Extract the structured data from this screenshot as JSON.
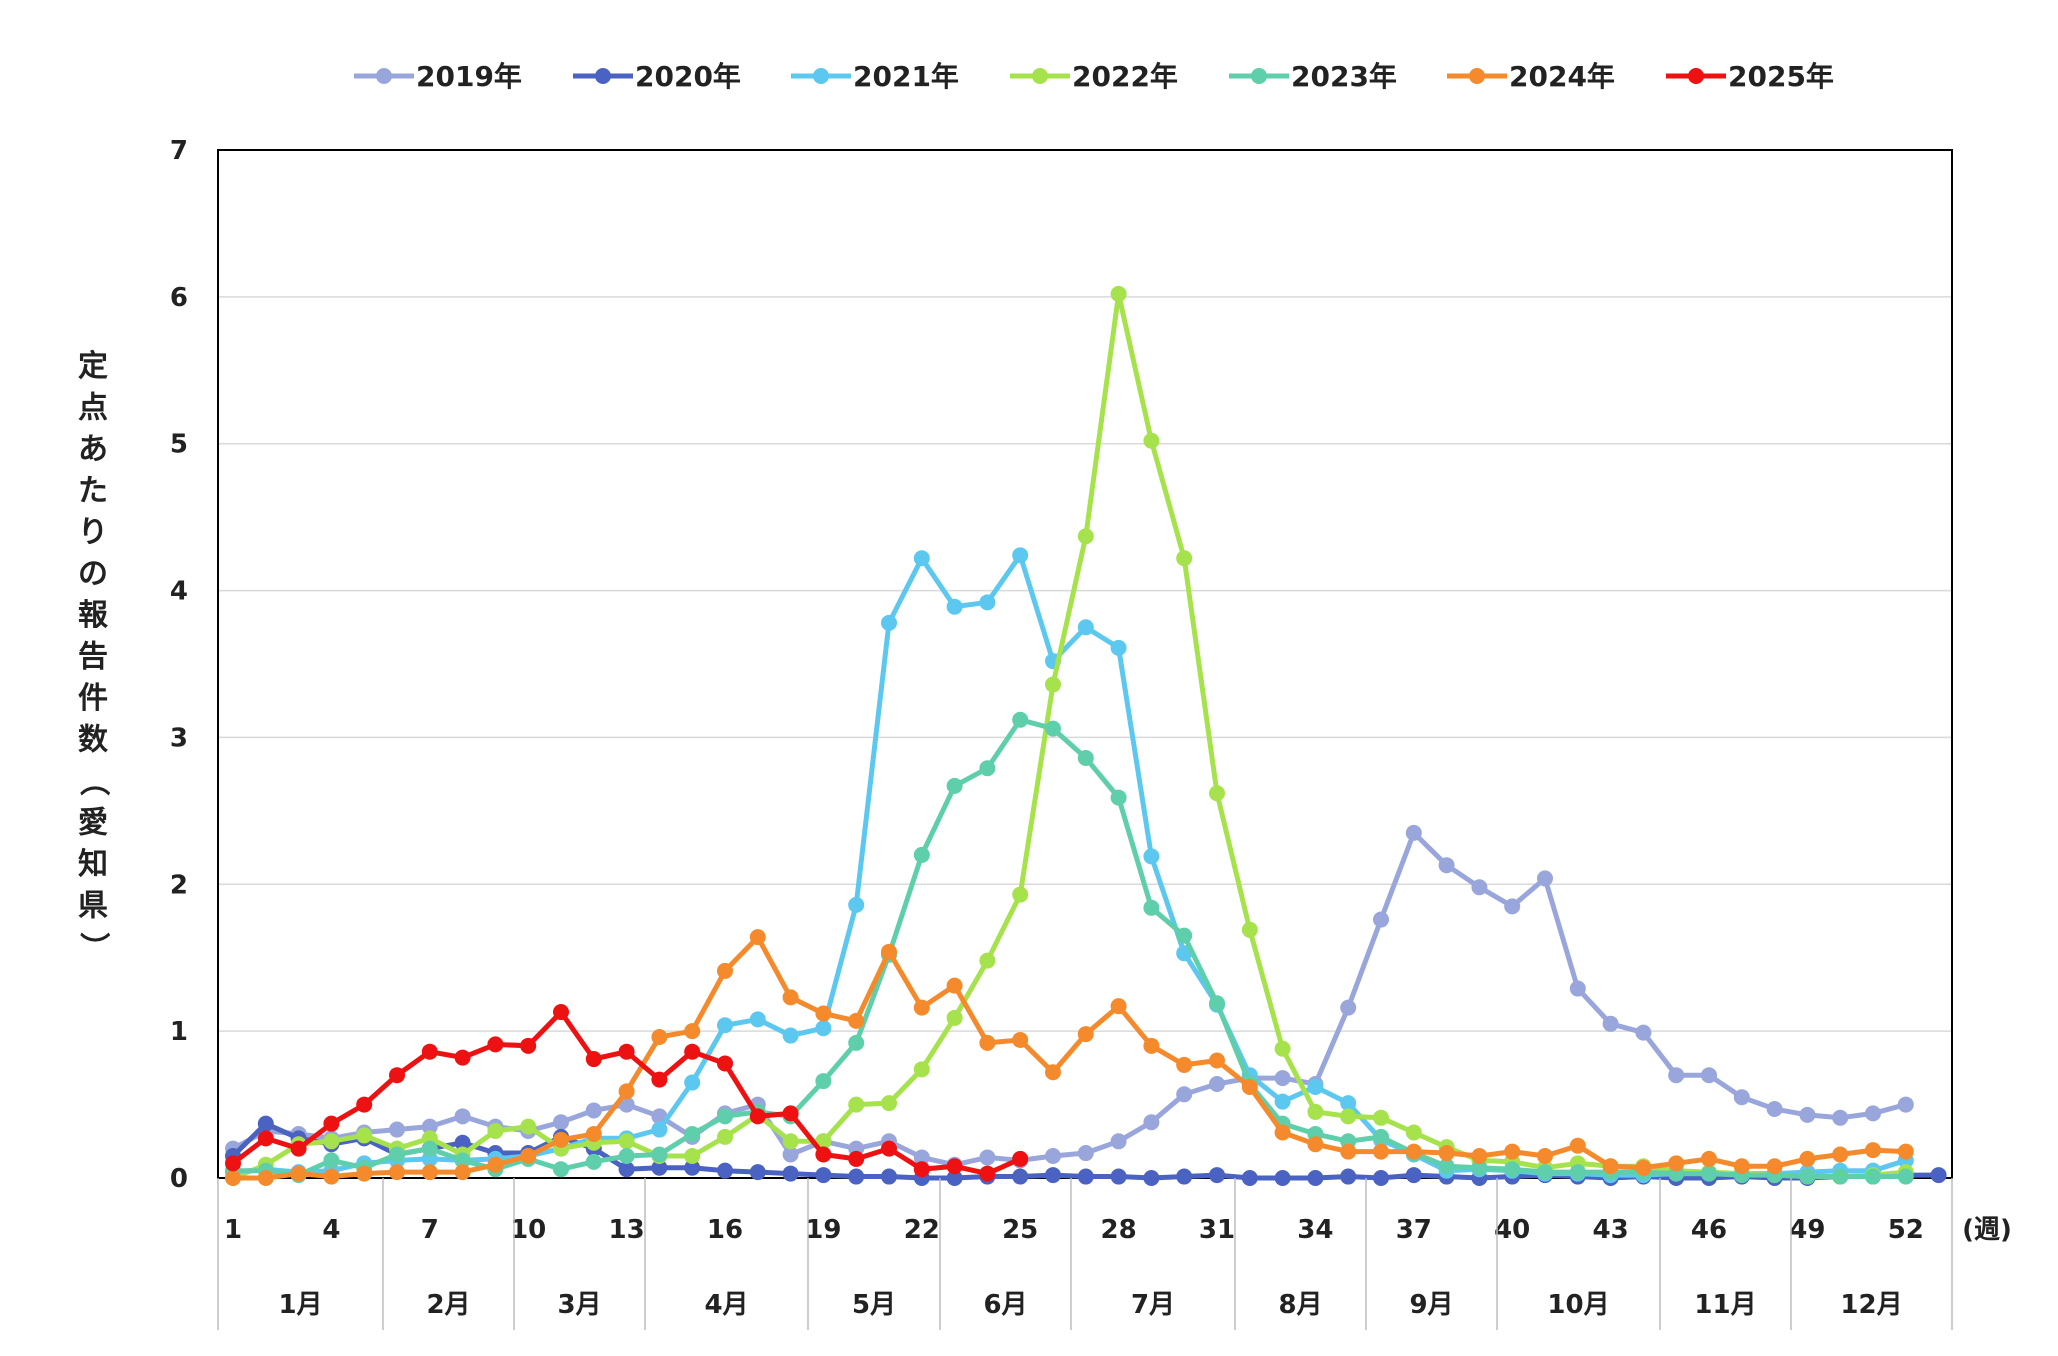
{
  "chart_data": {
    "type": "line",
    "ylabel": "定点あたりの報告件数（愛知県）",
    "xunit": "(週)",
    "ylim": [
      0,
      7
    ],
    "yticks": [
      "0",
      "1",
      "2",
      "3",
      "4",
      "5",
      "6",
      "7"
    ],
    "xlim": [
      1,
      53
    ],
    "xticks": [
      "1",
      "4",
      "7",
      "10",
      "13",
      "16",
      "19",
      "22",
      "25",
      "28",
      "31",
      "34",
      "37",
      "40",
      "43",
      "46",
      "49",
      "52"
    ],
    "months": [
      "1月",
      "2月",
      "3月",
      "4月",
      "5月",
      "6月",
      "7月",
      "8月",
      "9月",
      "10月",
      "11月",
      "12月"
    ],
    "grid": "horizontal",
    "legend_position": "top",
    "series": [
      {
        "name": "2019年",
        "color": "#99a6dc",
        "values": [
          0.2,
          0.32,
          0.3,
          0.27,
          0.31,
          0.33,
          0.35,
          0.42,
          0.35,
          0.32,
          0.38,
          0.46,
          0.5,
          0.42,
          0.28,
          0.44,
          0.5,
          0.16,
          0.25,
          0.2,
          0.25,
          0.14,
          0.09,
          0.14,
          0.12,
          0.15,
          0.17,
          0.25,
          0.38,
          0.57,
          0.64,
          0.68,
          0.68,
          0.64,
          1.16,
          1.76,
          2.35,
          2.13,
          1.98,
          1.85,
          2.04,
          1.29,
          1.05,
          0.99,
          0.7,
          0.7,
          0.55,
          0.47,
          0.43,
          0.41,
          0.44,
          0.5
        ]
      },
      {
        "name": "2020年",
        "color": "#4a62c2",
        "values": [
          0.15,
          0.37,
          0.27,
          0.23,
          0.27,
          0.16,
          0.2,
          0.24,
          0.17,
          0.17,
          0.28,
          0.2,
          0.06,
          0.07,
          0.07,
          0.05,
          0.04,
          0.03,
          0.02,
          0.01,
          0.01,
          0.0,
          0.0,
          0.01,
          0.01,
          0.02,
          0.01,
          0.01,
          0.0,
          0.01,
          0.02,
          0.0,
          0.0,
          0.0,
          0.01,
          0.0,
          0.02,
          0.01,
          0.0,
          0.01,
          0.02,
          0.01,
          0.0,
          0.01,
          0.0,
          0.0,
          0.01,
          0.0,
          0.0,
          0.01,
          0.01,
          0.02,
          0.02
        ]
      },
      {
        "name": "2021年",
        "color": "#5cc8f0",
        "values": [
          0.04,
          0.06,
          0.04,
          0.05,
          0.1,
          0.12,
          0.13,
          0.12,
          0.13,
          0.15,
          0.2,
          0.27,
          0.27,
          0.33,
          0.65,
          1.04,
          1.08,
          0.97,
          1.02,
          1.86,
          3.78,
          4.22,
          3.89,
          3.92,
          4.24,
          3.52,
          3.75,
          3.61,
          2.19,
          1.53,
          1.18,
          0.7,
          0.52,
          0.62,
          0.51,
          0.26,
          0.16,
          0.05,
          0.06,
          0.05,
          0.03,
          0.03,
          0.02,
          0.02,
          0.03,
          0.03,
          0.03,
          0.03,
          0.04,
          0.05,
          0.05,
          0.12
        ]
      },
      {
        "name": "2022年",
        "color": "#a6e24c",
        "values": [
          0.0,
          0.09,
          0.23,
          0.25,
          0.29,
          0.2,
          0.27,
          0.16,
          0.32,
          0.35,
          0.2,
          0.24,
          0.25,
          0.15,
          0.15,
          0.28,
          0.43,
          0.25,
          0.25,
          0.5,
          0.51,
          0.74,
          1.09,
          1.48,
          1.93,
          3.36,
          4.37,
          6.02,
          5.02,
          4.22,
          2.62,
          1.69,
          0.88,
          0.45,
          0.42,
          0.41,
          0.31,
          0.21,
          0.12,
          0.11,
          0.07,
          0.1,
          0.08,
          0.08,
          0.05,
          0.04,
          0.03,
          0.02,
          0.01,
          0.01,
          0.02,
          0.04
        ]
      },
      {
        "name": "2023年",
        "color": "#5ecfaa",
        "values": [
          0.05,
          0.05,
          0.02,
          0.12,
          0.07,
          0.16,
          0.2,
          0.12,
          0.06,
          0.13,
          0.06,
          0.11,
          0.15,
          0.16,
          0.3,
          0.42,
          0.45,
          0.42,
          0.66,
          0.92,
          1.52,
          2.2,
          2.67,
          2.79,
          3.12,
          3.06,
          2.86,
          2.59,
          1.84,
          1.65,
          1.19,
          0.64,
          0.37,
          0.3,
          0.25,
          0.28,
          0.17,
          0.08,
          0.07,
          0.06,
          0.04,
          0.04,
          0.04,
          0.04,
          0.03,
          0.03,
          0.02,
          0.02,
          0.01,
          0.01,
          0.01,
          0.01
        ]
      },
      {
        "name": "2024年",
        "color": "#f48a2b",
        "values": [
          0.0,
          0.0,
          0.03,
          0.01,
          0.03,
          0.04,
          0.04,
          0.04,
          0.09,
          0.15,
          0.26,
          0.3,
          0.59,
          0.96,
          1.0,
          1.41,
          1.64,
          1.23,
          1.12,
          1.07,
          1.54,
          1.16,
          1.31,
          0.92,
          0.94,
          0.72,
          0.98,
          1.17,
          0.9,
          0.77,
          0.8,
          0.62,
          0.31,
          0.23,
          0.18,
          0.18,
          0.18,
          0.17,
          0.15,
          0.18,
          0.15,
          0.22,
          0.08,
          0.07,
          0.1,
          0.13,
          0.08,
          0.08,
          0.13,
          0.16,
          0.19,
          0.18
        ]
      },
      {
        "name": "2025年",
        "color": "#ee1111",
        "values": [
          0.1,
          0.27,
          0.2,
          0.37,
          0.5,
          0.7,
          0.86,
          0.82,
          0.91,
          0.9,
          1.13,
          0.81,
          0.86,
          0.67,
          0.86,
          0.78,
          0.42,
          0.44,
          0.16,
          0.13,
          0.2,
          0.06,
          0.08,
          0.03,
          0.13
        ]
      }
    ]
  }
}
